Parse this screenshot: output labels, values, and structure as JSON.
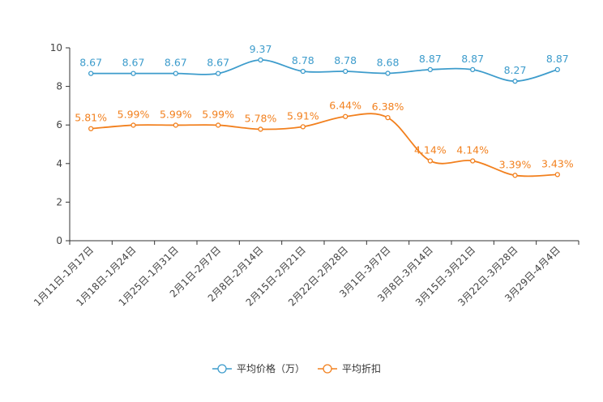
{
  "chart_data": {
    "type": "line",
    "title": "",
    "xlabel": "",
    "ylabel": "",
    "ylim": [
      0,
      10
    ],
    "yticks": [
      "0",
      "2",
      "4",
      "6",
      "8",
      "10"
    ],
    "categories": [
      "1月11日-1月17日",
      "1月18日-1月24日",
      "1月25日-1月31日",
      "2月1日-2月7日",
      "2月8日-2月14日",
      "2月15日-2月21日",
      "2月22日-2月28日",
      "3月1日-3月7日",
      "3月8日-3月14日",
      "3月15日-3月21日",
      "3月22日-3月28日",
      "3月29日-4月4日"
    ],
    "series": [
      {
        "name": "平均价格（万）",
        "color": "#3d9ccc",
        "values": [
          8.67,
          8.67,
          8.67,
          8.67,
          9.37,
          8.78,
          8.78,
          8.68,
          8.87,
          8.87,
          8.27,
          8.87
        ],
        "labels": [
          "8.67",
          "8.67",
          "8.67",
          "8.67",
          "9.37",
          "8.78",
          "8.78",
          "8.68",
          "8.87",
          "8.87",
          "8.27",
          "8.87"
        ]
      },
      {
        "name": "平均折扣",
        "color": "#f2801e",
        "values": [
          5.81,
          5.99,
          5.99,
          5.99,
          5.78,
          5.91,
          6.44,
          6.38,
          4.14,
          4.14,
          3.39,
          3.43
        ],
        "labels": [
          "5.81%",
          "5.99%",
          "5.99%",
          "5.99%",
          "5.78%",
          "5.91%",
          "6.44%",
          "6.38%",
          "4.14%",
          "4.14%",
          "3.39%",
          "3.43%"
        ]
      }
    ],
    "legend_position": "bottom",
    "grid": false
  }
}
